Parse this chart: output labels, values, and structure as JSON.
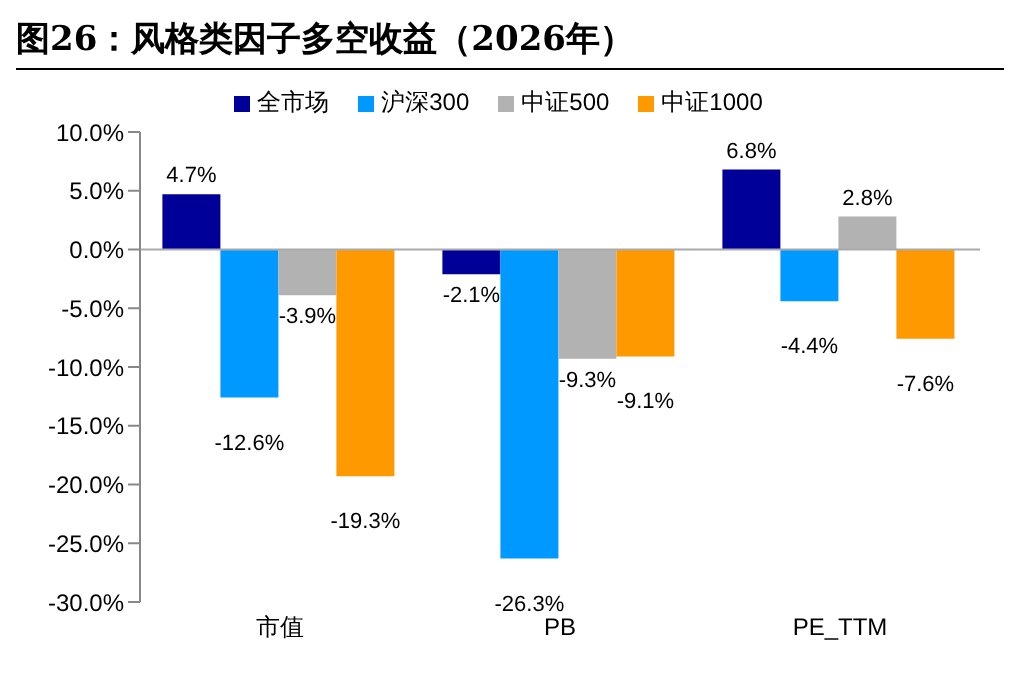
{
  "chart_data": {
    "type": "bar",
    "title": "图26：风格类因子多空收益（2026年）",
    "categories": [
      "市值",
      "PB",
      "PE_TTM"
    ],
    "series": [
      {
        "name": "全市场",
        "color": "#000099",
        "values": [
          4.7,
          -2.1,
          6.8
        ],
        "value_labels": [
          "4.7%",
          "-2.1%",
          "6.8%"
        ]
      },
      {
        "name": "沪深300",
        "color": "#0099ff",
        "values": [
          -12.6,
          -26.3,
          -4.4
        ],
        "value_labels": [
          "-12.6%",
          "-26.3%",
          "-4.4%"
        ]
      },
      {
        "name": "中证500",
        "color": "#b2b2b2",
        "values": [
          -3.9,
          -9.3,
          2.8
        ],
        "value_labels": [
          "-3.9%",
          "-9.3%",
          "2.8%"
        ]
      },
      {
        "name": "中证1000",
        "color": "#ff9900",
        "values": [
          -19.3,
          -9.1,
          -7.6
        ],
        "value_labels": [
          "-19.3%",
          "-9.1%",
          "-7.6%"
        ]
      }
    ],
    "ylim": [
      -30,
      10
    ],
    "yticks": [
      {
        "value": 10,
        "label": "10.0%"
      },
      {
        "value": 5,
        "label": "5.0%"
      },
      {
        "value": 0,
        "label": "0.0%"
      },
      {
        "value": -5,
        "label": "-5.0%"
      },
      {
        "value": -10,
        "label": "-10.0%"
      },
      {
        "value": -15,
        "label": "-15.0%"
      },
      {
        "value": -20,
        "label": "-20.0%"
      },
      {
        "value": -25,
        "label": "-25.0%"
      },
      {
        "value": -30,
        "label": "-30.0%"
      }
    ],
    "ref_lines": [
      {
        "axis": "y",
        "value": 0,
        "color": "#aaaaaa"
      }
    ],
    "legend": "top"
  }
}
